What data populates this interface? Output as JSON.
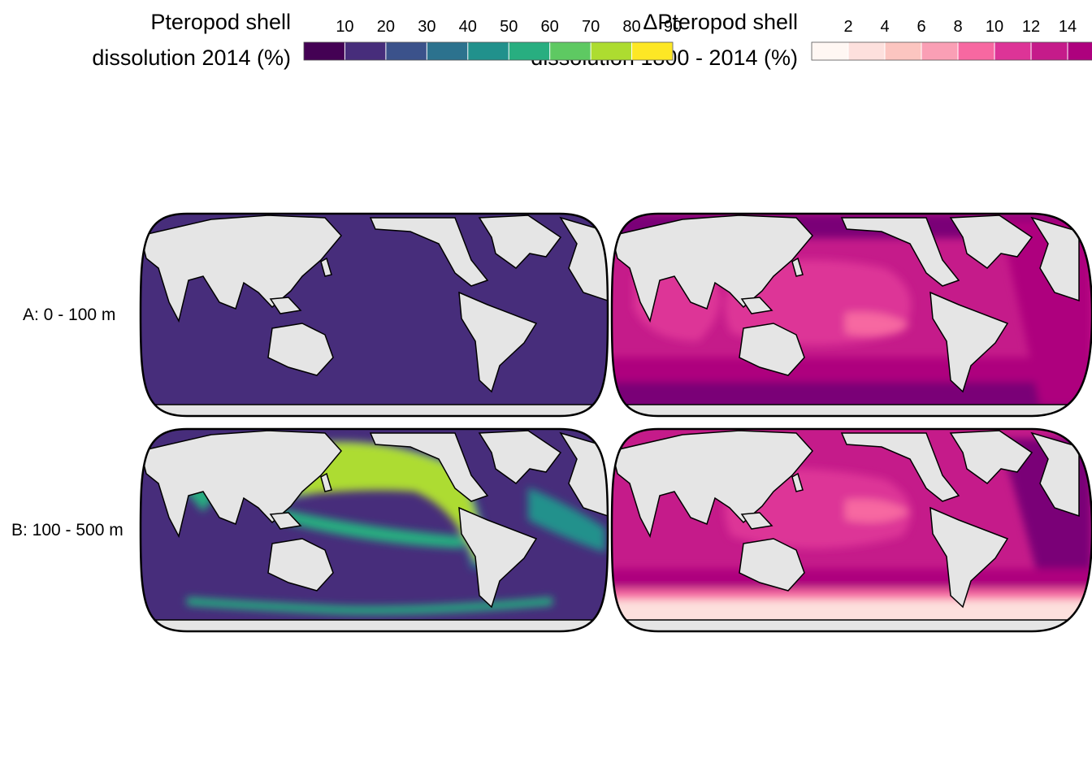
{
  "legends": [
    {
      "title_line1": "Pteropod shell",
      "title_line2": "dissolution 2014 (%)",
      "ticks": [
        "10",
        "20",
        "30",
        "40",
        "50",
        "60",
        "70",
        "80",
        "90"
      ],
      "colors": [
        "#440154",
        "#472d7b",
        "#3b528b",
        "#2c728e",
        "#21918c",
        "#28ae80",
        "#5ec962",
        "#addc30",
        "#fde725"
      ]
    },
    {
      "title_line1": "ΔPteropod shell",
      "title_line2": "dissolution 1800 - 2014 (%)",
      "ticks": [
        "2",
        "4",
        "6",
        "8",
        "10",
        "12",
        "14"
      ],
      "colors": [
        "#fff7f3",
        "#fde0dd",
        "#fcc5c0",
        "#fa9fb5",
        "#f768a1",
        "#dd3497",
        "#c51b8a",
        "#ae017e"
      ]
    }
  ],
  "rows": [
    {
      "label": "A: 0 - 100 m"
    },
    {
      "label": "B: 100 - 500 m"
    }
  ],
  "land_color": "#e5e5e5"
}
